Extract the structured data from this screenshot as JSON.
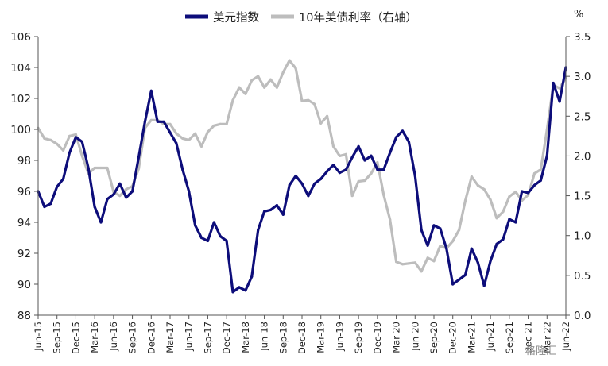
{
  "chart_data": {
    "type": "line",
    "legend_position": "top-center",
    "grid": false,
    "right_axis_unit": "%",
    "x_ticks": [
      "Jun-15",
      "Sep-15",
      "Dec-15",
      "Mar-16",
      "Jun-16",
      "Sep-16",
      "Dec-16",
      "Mar-17",
      "Jun-17",
      "Sep-17",
      "Dec-17",
      "Mar-18",
      "Jun-18",
      "Sep-18",
      "Dec-18",
      "Mar-19",
      "Jun-19",
      "Sep-19",
      "Dec-19",
      "Mar-20",
      "Jun-20",
      "Sep-20",
      "Dec-20",
      "Mar-21",
      "Jun-21",
      "Sep-21",
      "Dec-21",
      "Mar-22",
      "Jun-22"
    ],
    "y_left": {
      "ylim": [
        88,
        106
      ],
      "ticks": [
        "88",
        "90",
        "92",
        "94",
        "96",
        "98",
        "100",
        "102",
        "104",
        "106"
      ]
    },
    "y_right": {
      "ylim": [
        0,
        3.5
      ],
      "ticks": [
        "0.0",
        "0.5",
        "1.0",
        "1.5",
        "2.0",
        "2.5",
        "3.0",
        "3.5"
      ]
    },
    "series": [
      {
        "name": "美元指数",
        "axis": "left",
        "color": "#0d0d7a",
        "x": [
          "Jun-15",
          "Jul-15",
          "Aug-15",
          "Sep-15",
          "Oct-15",
          "Nov-15",
          "Dec-15",
          "Jan-16",
          "Feb-16",
          "Mar-16",
          "Apr-16",
          "May-16",
          "Jun-16",
          "Jul-16",
          "Aug-16",
          "Sep-16",
          "Oct-16",
          "Nov-16",
          "Dec-16",
          "Jan-17",
          "Feb-17",
          "Mar-17",
          "Apr-17",
          "May-17",
          "Jun-17",
          "Jul-17",
          "Aug-17",
          "Sep-17",
          "Oct-17",
          "Nov-17",
          "Dec-17",
          "Jan-18",
          "Feb-18",
          "Mar-18",
          "Apr-18",
          "May-18",
          "Jun-18",
          "Jul-18",
          "Aug-18",
          "Sep-18",
          "Oct-18",
          "Nov-18",
          "Dec-18",
          "Jan-19",
          "Feb-19",
          "Mar-19",
          "Apr-19",
          "May-19",
          "Jun-19",
          "Jul-19",
          "Aug-19",
          "Sep-19",
          "Oct-19",
          "Nov-19",
          "Dec-19",
          "Jan-20",
          "Feb-20",
          "Mar-20",
          "Apr-20",
          "May-20",
          "Jun-20",
          "Jul-20",
          "Aug-20",
          "Sep-20",
          "Oct-20",
          "Nov-20",
          "Dec-20",
          "Jan-21",
          "Feb-21",
          "Mar-21",
          "Apr-21",
          "May-21",
          "Jun-21",
          "Jul-21",
          "Aug-21",
          "Sep-21",
          "Oct-21",
          "Nov-21",
          "Dec-21",
          "Jan-22",
          "Feb-22",
          "Mar-22",
          "Apr-22",
          "May-22",
          "Jun-22"
        ],
        "values": [
          96.0,
          95.0,
          95.2,
          96.3,
          96.8,
          98.5,
          99.5,
          99.2,
          97.5,
          95.0,
          94.0,
          95.5,
          95.8,
          96.5,
          95.6,
          96.0,
          98.2,
          100.5,
          102.5,
          100.5,
          100.5,
          99.8,
          99.1,
          97.4,
          96.0,
          93.8,
          93.0,
          92.8,
          94.0,
          93.1,
          92.8,
          89.5,
          89.8,
          89.6,
          90.5,
          93.5,
          94.7,
          94.8,
          95.1,
          94.5,
          96.4,
          97.0,
          96.5,
          95.7,
          96.5,
          96.8,
          97.3,
          97.7,
          97.2,
          97.4,
          98.2,
          98.9,
          98.0,
          98.3,
          97.4,
          97.4,
          98.5,
          99.5,
          99.9,
          99.2,
          97.0,
          93.5,
          92.5,
          93.8,
          93.6,
          92.3,
          90.0,
          90.3,
          90.6,
          92.3,
          91.4,
          89.9,
          91.5,
          92.6,
          92.9,
          94.2,
          94.0,
          96.0,
          95.9,
          96.4,
          96.7,
          98.3,
          103.0,
          101.8,
          104.0
        ]
      },
      {
        "name": "10年美债利率（右轴）",
        "axis": "right",
        "color": "#bdbdbd",
        "x": [
          "Jun-15",
          "Jul-15",
          "Aug-15",
          "Sep-15",
          "Oct-15",
          "Nov-15",
          "Dec-15",
          "Jan-16",
          "Feb-16",
          "Mar-16",
          "Apr-16",
          "May-16",
          "Jun-16",
          "Jul-16",
          "Aug-16",
          "Sep-16",
          "Oct-16",
          "Nov-16",
          "Dec-16",
          "Jan-17",
          "Feb-17",
          "Mar-17",
          "Apr-17",
          "May-17",
          "Jun-17",
          "Jul-17",
          "Aug-17",
          "Sep-17",
          "Oct-17",
          "Nov-17",
          "Dec-17",
          "Jan-18",
          "Feb-18",
          "Mar-18",
          "Apr-18",
          "May-18",
          "Jun-18",
          "Jul-18",
          "Aug-18",
          "Sep-18",
          "Oct-18",
          "Nov-18",
          "Dec-18",
          "Jan-19",
          "Feb-19",
          "Mar-19",
          "Apr-19",
          "May-19",
          "Jun-19",
          "Jul-19",
          "Aug-19",
          "Sep-19",
          "Oct-19",
          "Nov-19",
          "Dec-19",
          "Jan-20",
          "Feb-20",
          "Mar-20",
          "Apr-20",
          "May-20",
          "Jun-20",
          "Jul-20",
          "Aug-20",
          "Sep-20",
          "Oct-20",
          "Nov-20",
          "Dec-20",
          "Jan-21",
          "Feb-21",
          "Mar-21",
          "Apr-21",
          "May-21",
          "Jun-21",
          "Jul-21",
          "Aug-21",
          "Sep-21",
          "Oct-21",
          "Nov-21",
          "Dec-21",
          "Jan-22",
          "Feb-22",
          "Mar-22",
          "Apr-22",
          "May-22",
          "Jun-22"
        ],
        "values": [
          2.35,
          2.22,
          2.2,
          2.15,
          2.07,
          2.25,
          2.27,
          2.0,
          1.78,
          1.85,
          1.85,
          1.85,
          1.55,
          1.5,
          1.58,
          1.62,
          1.84,
          2.35,
          2.45,
          2.45,
          2.4,
          2.4,
          2.28,
          2.22,
          2.2,
          2.28,
          2.12,
          2.3,
          2.38,
          2.4,
          2.4,
          2.7,
          2.86,
          2.78,
          2.95,
          3.0,
          2.86,
          2.96,
          2.86,
          3.05,
          3.2,
          3.1,
          2.69,
          2.7,
          2.65,
          2.41,
          2.5,
          2.12,
          2.0,
          2.02,
          1.5,
          1.68,
          1.69,
          1.78,
          1.92,
          1.51,
          1.2,
          0.67,
          0.64,
          0.65,
          0.66,
          0.55,
          0.72,
          0.68,
          0.87,
          0.84,
          0.93,
          1.07,
          1.44,
          1.74,
          1.63,
          1.58,
          1.45,
          1.22,
          1.3,
          1.49,
          1.55,
          1.44,
          1.51,
          1.78,
          1.83,
          2.33,
          2.89,
          2.85,
          2.98
        ]
      }
    ]
  },
  "watermark": "格隆汇"
}
